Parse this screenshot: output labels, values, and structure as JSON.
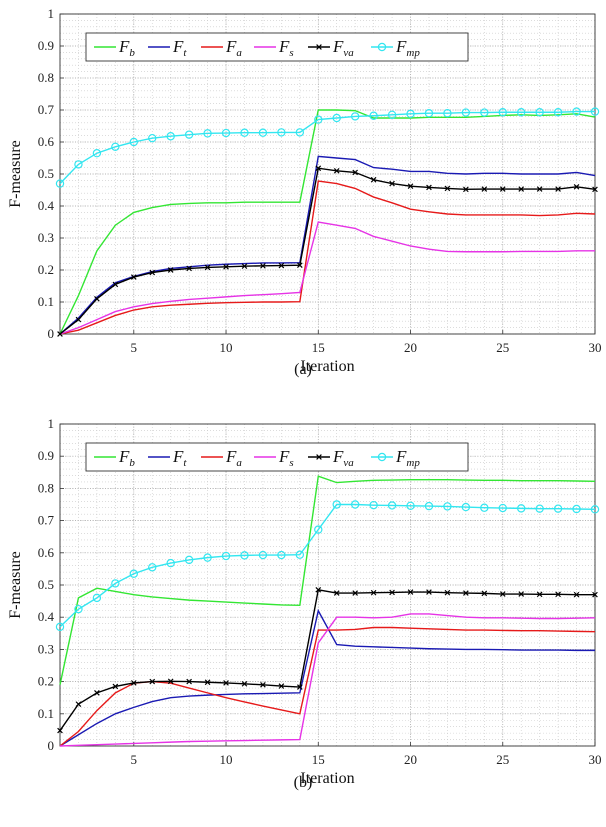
{
  "colors": {
    "F_b": "#33e633",
    "F_t": "#1a1ab3",
    "F_a": "#e61a1a",
    "F_s": "#e633e6",
    "F_va": "#000000",
    "F_mp": "#33e6f0"
  },
  "chart_data": [
    {
      "type": "line",
      "caption": "(a)",
      "xlabel": "Iteration",
      "ylabel": "F-measure",
      "xlim": [
        1,
        30
      ],
      "ylim": [
        0,
        1
      ],
      "xticks": [
        "5",
        "10",
        "15",
        "20",
        "25",
        "30"
      ],
      "yticks": [
        "0",
        "0.1",
        "0.2",
        "0.3",
        "0.4",
        "0.5",
        "0.6",
        "0.7",
        "0.8",
        "0.9",
        "1"
      ],
      "grid": true,
      "legend_position": "top",
      "x": [
        1,
        2,
        3,
        4,
        5,
        6,
        7,
        8,
        9,
        10,
        11,
        12,
        13,
        14,
        15,
        16,
        17,
        18,
        19,
        20,
        21,
        22,
        23,
        24,
        25,
        26,
        27,
        28,
        29,
        30
      ],
      "series": [
        {
          "key": "F_b",
          "name": "F",
          "sub": "b",
          "marker": "none",
          "values": [
            0,
            0.12,
            0.26,
            0.34,
            0.38,
            0.395,
            0.405,
            0.408,
            0.41,
            0.41,
            0.412,
            0.412,
            0.412,
            0.412,
            0.7,
            0.7,
            0.698,
            0.675,
            0.675,
            0.675,
            0.677,
            0.677,
            0.677,
            0.68,
            0.683,
            0.685,
            0.683,
            0.685,
            0.688,
            0.678
          ]
        },
        {
          "key": "F_t",
          "name": "F",
          "sub": "t",
          "marker": "none",
          "values": [
            0,
            0.05,
            0.115,
            0.16,
            0.18,
            0.195,
            0.205,
            0.21,
            0.215,
            0.218,
            0.22,
            0.222,
            0.222,
            0.223,
            0.555,
            0.55,
            0.545,
            0.52,
            0.515,
            0.508,
            0.508,
            0.502,
            0.5,
            0.502,
            0.502,
            0.5,
            0.5,
            0.5,
            0.505,
            0.495
          ]
        },
        {
          "key": "F_a",
          "name": "F",
          "sub": "a",
          "marker": "none",
          "values": [
            0,
            0.012,
            0.035,
            0.058,
            0.075,
            0.085,
            0.09,
            0.093,
            0.096,
            0.098,
            0.099,
            0.1,
            0.1,
            0.101,
            0.478,
            0.47,
            0.455,
            0.428,
            0.41,
            0.39,
            0.382,
            0.375,
            0.372,
            0.372,
            0.372,
            0.372,
            0.37,
            0.372,
            0.377,
            0.375
          ]
        },
        {
          "key": "F_s",
          "name": "F",
          "sub": "s",
          "marker": "none",
          "values": [
            0,
            0.02,
            0.045,
            0.07,
            0.085,
            0.095,
            0.102,
            0.108,
            0.112,
            0.116,
            0.12,
            0.123,
            0.126,
            0.13,
            0.35,
            0.34,
            0.33,
            0.305,
            0.29,
            0.275,
            0.265,
            0.258,
            0.257,
            0.257,
            0.257,
            0.258,
            0.258,
            0.258,
            0.26,
            0.26
          ]
        },
        {
          "key": "F_va",
          "name": "F",
          "sub": "va",
          "marker": "x",
          "values": [
            0,
            0.045,
            0.11,
            0.155,
            0.178,
            0.192,
            0.2,
            0.205,
            0.208,
            0.21,
            0.212,
            0.213,
            0.214,
            0.215,
            0.518,
            0.51,
            0.505,
            0.482,
            0.47,
            0.462,
            0.458,
            0.455,
            0.452,
            0.453,
            0.453,
            0.453,
            0.453,
            0.453,
            0.46,
            0.452
          ]
        },
        {
          "key": "F_mp",
          "name": "F",
          "sub": "mp",
          "marker": "circle",
          "values": [
            0.47,
            0.53,
            0.565,
            0.585,
            0.6,
            0.612,
            0.618,
            0.623,
            0.627,
            0.628,
            0.629,
            0.629,
            0.63,
            0.63,
            0.67,
            0.675,
            0.68,
            0.682,
            0.685,
            0.688,
            0.69,
            0.69,
            0.692,
            0.692,
            0.693,
            0.693,
            0.693,
            0.693,
            0.695,
            0.695
          ]
        }
      ]
    },
    {
      "type": "line",
      "caption": "(b)",
      "xlabel": "Iteration",
      "ylabel": "F-measure",
      "xlim": [
        1,
        30
      ],
      "ylim": [
        0,
        1
      ],
      "xticks": [
        "5",
        "10",
        "15",
        "20",
        "25",
        "30"
      ],
      "yticks": [
        "0",
        "0.1",
        "0.2",
        "0.3",
        "0.4",
        "0.5",
        "0.6",
        "0.7",
        "0.8",
        "0.9",
        "1"
      ],
      "grid": true,
      "legend_position": "top",
      "x": [
        1,
        2,
        3,
        4,
        5,
        6,
        7,
        8,
        9,
        10,
        11,
        12,
        13,
        14,
        15,
        16,
        17,
        18,
        19,
        20,
        21,
        22,
        23,
        24,
        25,
        26,
        27,
        28,
        29,
        30
      ],
      "series": [
        {
          "key": "F_b",
          "name": "F",
          "sub": "b",
          "marker": "none",
          "values": [
            0.19,
            0.46,
            0.49,
            0.48,
            0.47,
            0.463,
            0.458,
            0.453,
            0.45,
            0.447,
            0.444,
            0.441,
            0.438,
            0.437,
            0.838,
            0.818,
            0.822,
            0.825,
            0.826,
            0.827,
            0.827,
            0.827,
            0.826,
            0.825,
            0.825,
            0.824,
            0.824,
            0.824,
            0.823,
            0.822
          ]
        },
        {
          "key": "F_t",
          "name": "F",
          "sub": "t",
          "marker": "none",
          "values": [
            0,
            0.035,
            0.07,
            0.1,
            0.12,
            0.138,
            0.15,
            0.155,
            0.158,
            0.16,
            0.162,
            0.163,
            0.164,
            0.165,
            0.42,
            0.315,
            0.31,
            0.308,
            0.306,
            0.304,
            0.302,
            0.301,
            0.3,
            0.3,
            0.299,
            0.298,
            0.298,
            0.298,
            0.297,
            0.297
          ]
        },
        {
          "key": "F_a",
          "name": "F",
          "sub": "a",
          "marker": "none",
          "values": [
            0,
            0.045,
            0.11,
            0.165,
            0.195,
            0.2,
            0.195,
            0.18,
            0.165,
            0.15,
            0.137,
            0.124,
            0.112,
            0.1,
            0.36,
            0.36,
            0.362,
            0.368,
            0.368,
            0.366,
            0.364,
            0.362,
            0.36,
            0.36,
            0.359,
            0.358,
            0.358,
            0.357,
            0.356,
            0.355
          ]
        },
        {
          "key": "F_s",
          "name": "F",
          "sub": "s",
          "marker": "none",
          "values": [
            0,
            0.002,
            0.004,
            0.006,
            0.008,
            0.01,
            0.012,
            0.014,
            0.015,
            0.016,
            0.017,
            0.018,
            0.019,
            0.02,
            0.32,
            0.4,
            0.4,
            0.398,
            0.4,
            0.41,
            0.41,
            0.405,
            0.4,
            0.398,
            0.398,
            0.397,
            0.396,
            0.396,
            0.397,
            0.398
          ]
        },
        {
          "key": "F_va",
          "name": "F",
          "sub": "va",
          "marker": "x",
          "values": [
            0.048,
            0.13,
            0.165,
            0.185,
            0.196,
            0.2,
            0.201,
            0.2,
            0.198,
            0.196,
            0.193,
            0.19,
            0.186,
            0.183,
            0.485,
            0.475,
            0.475,
            0.476,
            0.477,
            0.478,
            0.478,
            0.476,
            0.475,
            0.474,
            0.472,
            0.472,
            0.471,
            0.471,
            0.47,
            0.47
          ]
        },
        {
          "key": "F_mp",
          "name": "F",
          "sub": "mp",
          "marker": "circle",
          "values": [
            0.37,
            0.425,
            0.46,
            0.505,
            0.535,
            0.555,
            0.568,
            0.578,
            0.585,
            0.59,
            0.592,
            0.593,
            0.593,
            0.594,
            0.672,
            0.75,
            0.75,
            0.748,
            0.747,
            0.746,
            0.745,
            0.744,
            0.742,
            0.74,
            0.739,
            0.738,
            0.737,
            0.737,
            0.736,
            0.735
          ]
        }
      ]
    }
  ]
}
